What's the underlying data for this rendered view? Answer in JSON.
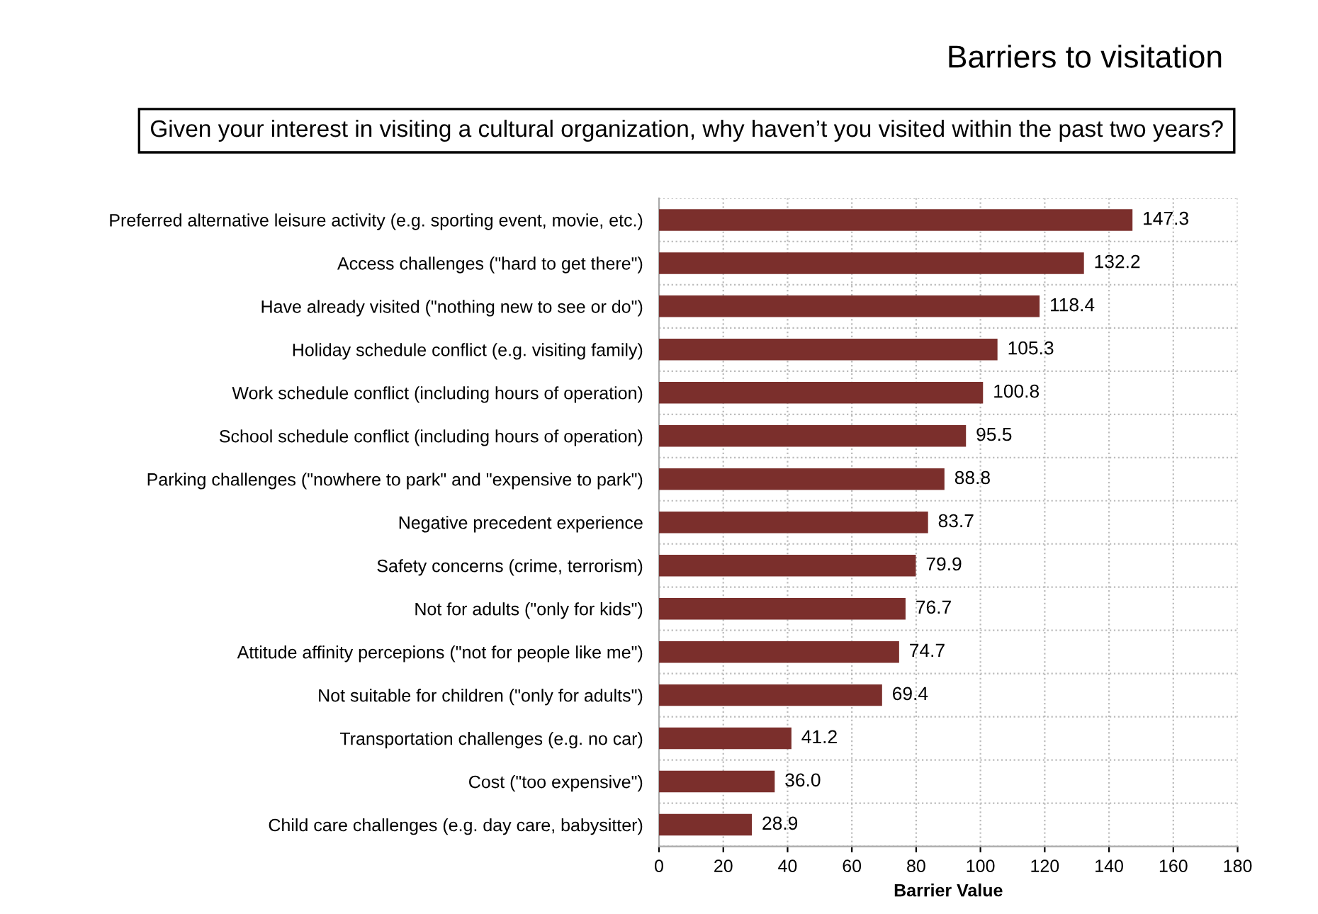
{
  "chart_data": {
    "type": "bar",
    "orientation": "horizontal",
    "title": "Barriers to visitation",
    "subtitle": "Given your interest in visiting a cultural organization, why haven’t you visited within the past two years?",
    "xlabel": "Barrier Value",
    "categories": [
      "Preferred alternative leisure activity (e.g. sporting event, movie, etc.)",
      "Access challenges (\"hard to get there\")",
      "Have already visited (\"nothing new to see or do\")",
      "Holiday schedule conflict (e.g. visiting family)",
      "Work schedule conflict (including hours of operation)",
      "School schedule conflict (including hours of operation)",
      "Parking challenges (\"nowhere to park\" and \"expensive to park\")",
      "Negative precedent experience",
      "Safety concerns (crime, terrorism)",
      "Not for adults (\"only for kids\")",
      "Attitude affinity percepions (\"not for people like me\")",
      "Not suitable for children (\"only for adults\")",
      "Transportation challenges (e.g. no car)",
      "Cost (\"too expensive\")",
      "Child care challenges (e.g. day care, babysitter)"
    ],
    "values": [
      147.3,
      132.2,
      118.4,
      105.3,
      100.8,
      95.5,
      88.8,
      83.7,
      79.9,
      76.7,
      74.7,
      69.4,
      41.2,
      36.0,
      28.9
    ],
    "value_labels": [
      "147.3",
      "132.2",
      "118.4",
      "105.3",
      "100.8",
      "95.5",
      "88.8",
      "83.7",
      "79.9",
      "76.7",
      "74.7",
      "69.4",
      "41.2",
      "36.0",
      "28.9"
    ],
    "color": "#7b2f2c",
    "xlim": [
      0,
      180
    ],
    "xticks": [
      0,
      20,
      40,
      60,
      80,
      100,
      120,
      140,
      160,
      180
    ],
    "grid": true
  }
}
